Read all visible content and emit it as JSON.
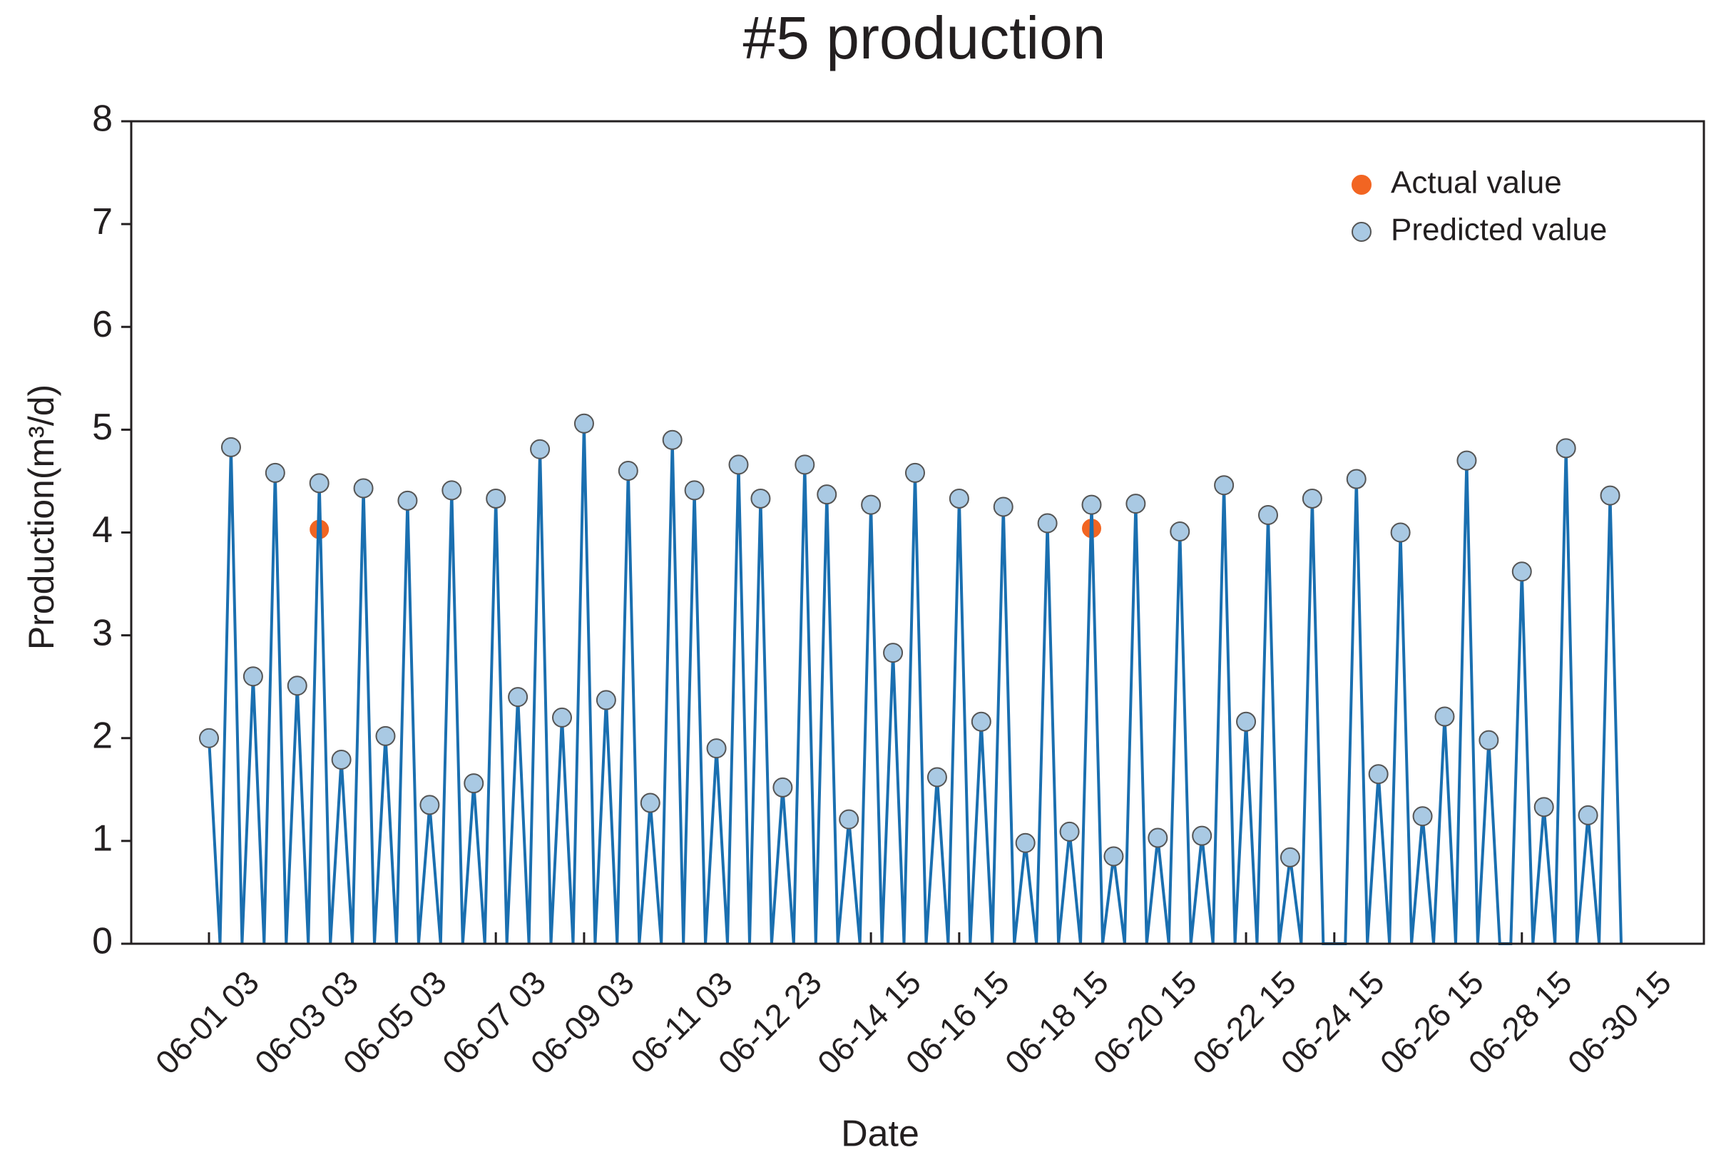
{
  "chart_data": {
    "type": "line",
    "title": "#5 production",
    "xlabel": "Date",
    "ylabel": "Production(m³/d)",
    "categories": [
      "06-01 03",
      null,
      null,
      null,
      null,
      null,
      null,
      null,
      null,
      "06-03 03",
      null,
      null,
      null,
      null,
      null,
      null,
      null,
      "06-05 03",
      null,
      null,
      null,
      null,
      null,
      null,
      null,
      null,
      "06-07 03",
      null,
      null,
      null,
      null,
      null,
      null,
      null,
      "06-09 03",
      null,
      null,
      null,
      null,
      null,
      null,
      null,
      null,
      "06-11 03",
      null,
      null,
      null,
      null,
      null,
      null,
      null,
      "06-12 23",
      null,
      null,
      null,
      null,
      null,
      null,
      null,
      null,
      "06-14 15",
      null,
      null,
      null,
      null,
      null,
      null,
      null,
      "06-16 15",
      null,
      null,
      null,
      null,
      null,
      null,
      null,
      null,
      "06-18 15",
      null,
      null,
      null,
      null,
      null,
      null,
      null,
      "06-20 15",
      null,
      null,
      null,
      null,
      null,
      null,
      null,
      null,
      "06-22 15",
      null,
      null,
      null,
      null,
      null,
      null,
      null,
      "06-24 15",
      null,
      null,
      null,
      null,
      null,
      null,
      null,
      null,
      "06-26 15",
      null,
      null,
      null,
      null,
      null,
      null,
      null,
      "06-28 15",
      null,
      null,
      null,
      null,
      null,
      null,
      null,
      null,
      "06-30 15"
    ],
    "series": [
      {
        "name": "Actual value",
        "color": "#f26522",
        "line": false,
        "values": [
          null,
          null,
          null,
          null,
          null,
          null,
          null,
          null,
          null,
          null,
          4.03,
          null,
          null,
          null,
          null,
          null,
          null,
          null,
          null,
          null,
          null,
          null,
          null,
          null,
          null,
          null,
          null,
          null,
          null,
          null,
          null,
          null,
          null,
          null,
          null,
          null,
          null,
          null,
          null,
          null,
          null,
          null,
          null,
          null,
          null,
          null,
          null,
          null,
          null,
          null,
          null,
          null,
          null,
          null,
          null,
          null,
          null,
          null,
          null,
          null,
          null,
          null,
          null,
          null,
          null,
          null,
          null,
          null,
          null,
          null,
          null,
          null,
          null,
          null,
          null,
          null,
          null,
          null,
          null,
          null,
          4.04,
          null,
          null,
          null,
          null,
          null,
          null,
          null,
          null,
          null,
          null,
          null,
          null,
          null,
          null,
          null,
          null,
          null,
          null,
          null,
          null,
          null,
          null,
          null,
          null,
          null,
          null,
          null,
          null,
          null,
          null,
          null,
          null,
          null,
          null,
          null,
          null,
          null,
          null,
          null,
          null,
          null,
          null,
          null,
          null,
          null,
          null,
          null,
          null
        ]
      },
      {
        "name": "Predicted value",
        "color": "#1a6fb0",
        "marker_color": "#a9c9e3",
        "line": true,
        "values": [
          2.0,
          0,
          4.83,
          0,
          2.6,
          0,
          4.58,
          0,
          2.51,
          0,
          4.48,
          0,
          1.79,
          0,
          4.43,
          0,
          2.02,
          0,
          4.31,
          0,
          1.35,
          0,
          4.41,
          0,
          1.56,
          0,
          4.33,
          0,
          2.4,
          0,
          4.81,
          0,
          2.2,
          0,
          5.06,
          0,
          2.37,
          0,
          4.6,
          0,
          1.37,
          0,
          4.9,
          0,
          4.41,
          0,
          1.9,
          0,
          4.66,
          0,
          4.33,
          0,
          1.52,
          0,
          4.66,
          0,
          4.37,
          0,
          1.21,
          0,
          4.27,
          0,
          2.83,
          0,
          4.58,
          0,
          1.62,
          0,
          4.33,
          0,
          2.16,
          0,
          4.25,
          0,
          0.98,
          0,
          4.09,
          0,
          1.09,
          0,
          4.27,
          0,
          0.85,
          0,
          4.28,
          0,
          1.03,
          0,
          4.01,
          0,
          1.05,
          0,
          4.46,
          0,
          2.16,
          0,
          4.17,
          0,
          0.84,
          0,
          4.33,
          0,
          0,
          0,
          4.52,
          0,
          1.65,
          0,
          4.0,
          0,
          1.24,
          0,
          2.21,
          0,
          4.7,
          0,
          1.98,
          0,
          0,
          3.62,
          0,
          1.33,
          0,
          4.82,
          0,
          1.25,
          0,
          4.36,
          0
        ]
      }
    ],
    "ylim": [
      0,
      8
    ],
    "yticks": [
      0,
      1,
      2,
      3,
      4,
      5,
      6,
      7,
      8
    ],
    "grid": false,
    "legend": "upper right"
  }
}
